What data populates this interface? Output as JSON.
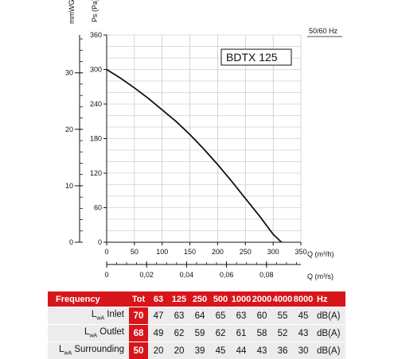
{
  "chart_data": {
    "type": "line",
    "title": "BDTX 125",
    "frequency_label": "50/60 Hz",
    "x_label": "Q (m³/h)",
    "x_ticks": [
      "0",
      "50",
      "100",
      "150",
      "200",
      "250",
      "300",
      "350"
    ],
    "x_lim": [
      0,
      350
    ],
    "x2_label": "Q (m³/s)",
    "x2_ticks": [
      "0",
      "0,02",
      "0,04",
      "0,06",
      "0,08"
    ],
    "x2_values": [
      0,
      0.02,
      0.04,
      0.06,
      0.08
    ],
    "y_label": "Ps (Pa)",
    "y_ticks": [
      "0",
      "60",
      "120",
      "180",
      "240",
      "300",
      "360"
    ],
    "y_lim": [
      0,
      360
    ],
    "y2_label": "mmWG",
    "y2_ticks": [
      "0",
      "10",
      "20",
      "30"
    ],
    "y2_values": [
      0,
      10,
      20,
      30
    ],
    "grid": true,
    "series": [
      {
        "x": [
          0,
          25,
          50,
          75,
          100,
          125,
          150,
          175,
          200,
          225,
          250,
          275,
          300,
          315
        ],
        "y": [
          300,
          285,
          268,
          250,
          230,
          210,
          187,
          162,
          135,
          106,
          76,
          46,
          14,
          0
        ]
      }
    ]
  },
  "noise_table": {
    "header": {
      "label": "Frequency",
      "tot": "Tot",
      "bands": [
        "63",
        "125",
        "250",
        "500",
        "1000",
        "2000",
        "4000",
        "8000"
      ],
      "unit": "Hz"
    },
    "rows": [
      {
        "prefix": "L",
        "sub": "wA",
        "label": " Inlet",
        "tot": "70",
        "values": [
          "47",
          "63",
          "64",
          "65",
          "63",
          "60",
          "55",
          "45"
        ],
        "unit": "dB(A)"
      },
      {
        "prefix": "L",
        "sub": "wA",
        "label": " Outlet",
        "tot": "68",
        "values": [
          "49",
          "62",
          "59",
          "62",
          "61",
          "58",
          "52",
          "43"
        ],
        "unit": "dB(A)"
      },
      {
        "prefix": "L",
        "sub": "wA",
        "label": " Surrounding",
        "tot": "50",
        "values": [
          "20",
          "20",
          "39",
          "45",
          "44",
          "43",
          "36",
          "30"
        ],
        "unit": "dB(A)"
      }
    ]
  }
}
